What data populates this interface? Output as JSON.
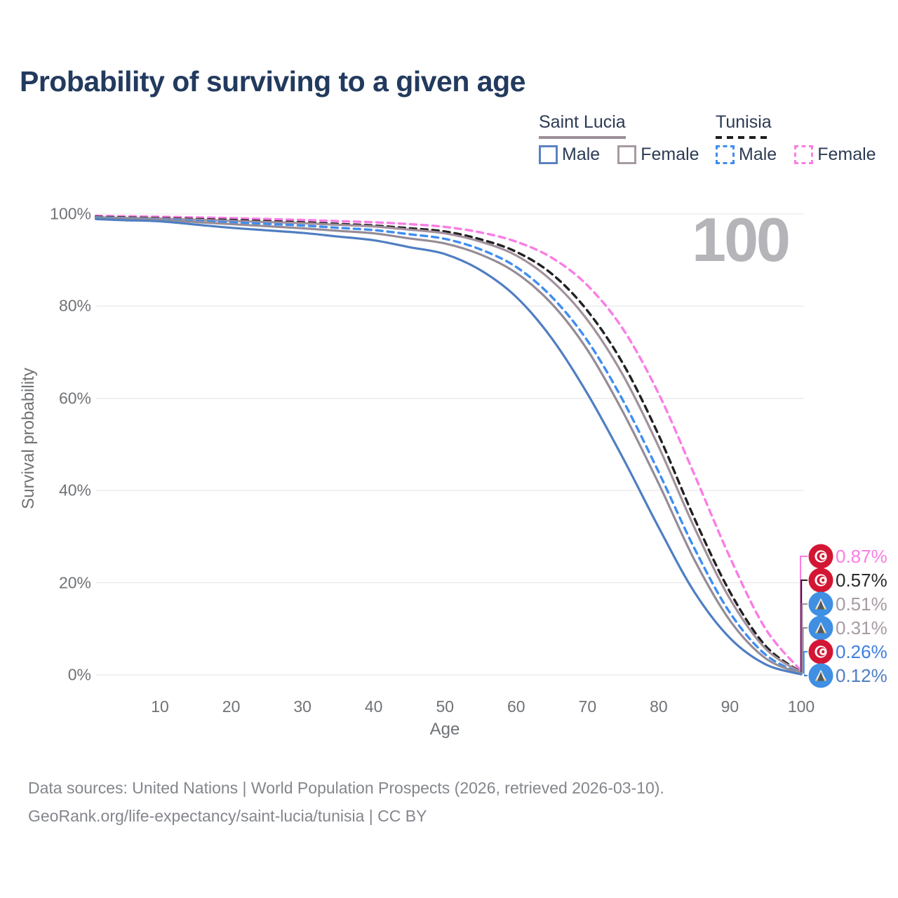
{
  "header": {
    "title": "Probability of surviving to a given age"
  },
  "legend": {
    "groups": [
      {
        "country": "Saint Lucia",
        "line_style": "solid",
        "underline_color": "#9b8f9b",
        "items": [
          {
            "label": "Male",
            "color": "#4f7ec2"
          },
          {
            "label": "Female",
            "color": "#a2919d"
          }
        ]
      },
      {
        "country": "Tunisia",
        "line_style": "dashed",
        "underline_color": "#1e1e1e",
        "items": [
          {
            "label": "Male",
            "color": "#3f8df0"
          },
          {
            "label": "Female",
            "color": "#fa7de4"
          }
        ]
      }
    ]
  },
  "chart_data": {
    "type": "line",
    "title": "Probability of surviving to a given age",
    "xlabel": "Age",
    "ylabel": "Survival probability",
    "xlim": [
      1,
      100
    ],
    "ylim": [
      0,
      100
    ],
    "x_ticks": [
      10,
      20,
      30,
      40,
      50,
      60,
      70,
      80,
      90,
      100
    ],
    "y_tick_labels": [
      "0%",
      "20%",
      "40%",
      "60%",
      "80%",
      "100%"
    ],
    "grid": "horizontal",
    "legend_position": "top-right",
    "hover_age_label": "100",
    "ages": [
      1,
      5,
      10,
      15,
      20,
      25,
      30,
      35,
      40,
      45,
      50,
      55,
      60,
      65,
      70,
      75,
      80,
      85,
      90,
      95,
      100
    ],
    "series": [
      {
        "name": "Tunisia Female",
        "country": "Tunisia",
        "sex": "Female",
        "flag": "tunisia",
        "color": "#fa7de4",
        "dash": true,
        "end_label": "0.87%",
        "end_label_color": "#fa7de4",
        "values": [
          99.6,
          99.5,
          99.4,
          99.25,
          99.1,
          98.9,
          98.7,
          98.45,
          98.2,
          97.8,
          97.2,
          96.0,
          94.0,
          90.5,
          84.5,
          75.0,
          61.0,
          43.5,
          25.5,
          10.0,
          0.87
        ]
      },
      {
        "name": "Tunisia",
        "country": "Tunisia",
        "sex": "Both",
        "flag": "tunisia",
        "color": "#212121",
        "dash": true,
        "end_label": "0.57%",
        "end_label_color": "#2a2a2a",
        "values": [
          99.4,
          99.25,
          99.1,
          98.9,
          98.7,
          98.45,
          98.2,
          97.85,
          97.5,
          96.9,
          96.2,
          94.5,
          91.8,
          87.0,
          79.0,
          67.5,
          52.0,
          34.0,
          18.0,
          6.3,
          0.57
        ]
      },
      {
        "name": "Saint Lucia Female",
        "country": "Saint Lucia",
        "sex": "Female",
        "flag": "saint-lucia",
        "color": "#a2919d",
        "dash": false,
        "end_label": "0.51%",
        "end_label_color": "#a79ba5",
        "values": [
          99.3,
          99.15,
          99.0,
          98.75,
          98.5,
          98.25,
          98.0,
          97.65,
          97.3,
          96.6,
          95.8,
          94.0,
          91.0,
          85.5,
          77.0,
          65.0,
          49.5,
          32.0,
          16.5,
          5.7,
          0.51
        ]
      },
      {
        "name": "Tunisia Male",
        "country": "Tunisia",
        "sex": "Male",
        "flag": "tunisia",
        "color": "#3f8df0",
        "dash": true,
        "end_label": "0.26%",
        "end_label_color": "#3f7fdd",
        "values": [
          99.2,
          99.0,
          98.8,
          98.5,
          98.2,
          97.85,
          97.5,
          97.0,
          96.5,
          95.6,
          94.6,
          92.3,
          88.5,
          82.0,
          72.5,
          59.5,
          44.0,
          27.5,
          13.5,
          4.4,
          0.26
        ]
      },
      {
        "name": "Saint Lucia",
        "country": "Saint Lucia",
        "sex": "Both",
        "flag": "saint-lucia",
        "color": "#958c96",
        "dash": false,
        "end_label": "0.31%",
        "end_label_color": "#a79ba5",
        "values": [
          99.1,
          98.9,
          98.7,
          98.25,
          97.8,
          97.35,
          96.9,
          96.35,
          95.8,
          94.7,
          93.6,
          91.2,
          87.2,
          80.5,
          70.5,
          57.0,
          41.5,
          25.0,
          11.8,
          3.6,
          0.31
        ]
      },
      {
        "name": "Saint Lucia Male",
        "country": "Saint Lucia",
        "sex": "Male",
        "flag": "saint-lucia",
        "color": "#4f7ec2",
        "dash": false,
        "end_label": "0.12%",
        "end_label_color": "#4f7ec2",
        "values": [
          98.9,
          98.65,
          98.4,
          97.7,
          97.0,
          96.45,
          95.9,
          95.1,
          94.3,
          92.8,
          91.3,
          87.8,
          82.0,
          73.0,
          61.0,
          47.0,
          32.0,
          18.0,
          8.0,
          2.3,
          0.12
        ]
      }
    ]
  },
  "footer": {
    "line1": "Data sources: United Nations | World Population Prospects (2026, retrieved 2026-03-10).",
    "line2": "GeoRank.org/life-expectancy/saint-lucia/tunisia | CC BY"
  }
}
